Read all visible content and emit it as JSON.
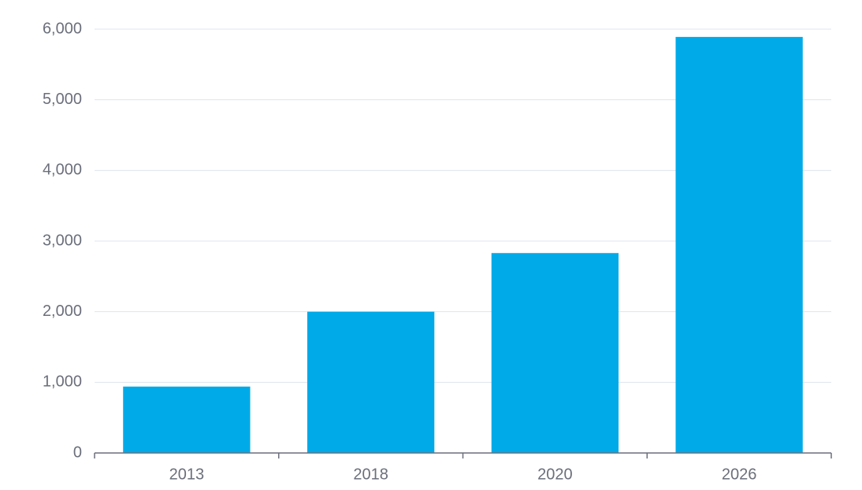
{
  "chart_data": {
    "type": "bar",
    "categories": [
      "2013",
      "2018",
      "2020",
      "2026"
    ],
    "values": [
      940,
      2000,
      2830,
      5890
    ],
    "color": "#00aae8",
    "ylim": [
      0,
      6000
    ],
    "yticks": [
      0,
      {
        "value": 1000,
        "label": "1,000"
      },
      {
        "value": 2000,
        "label": "2,000"
      },
      {
        "value": 3000,
        "label": "3,000"
      },
      {
        "value": 4000,
        "label": "4,000"
      },
      {
        "value": 5000,
        "label": "5,000"
      },
      {
        "value": 6000,
        "label": "6,000"
      }
    ],
    "grid": true
  }
}
